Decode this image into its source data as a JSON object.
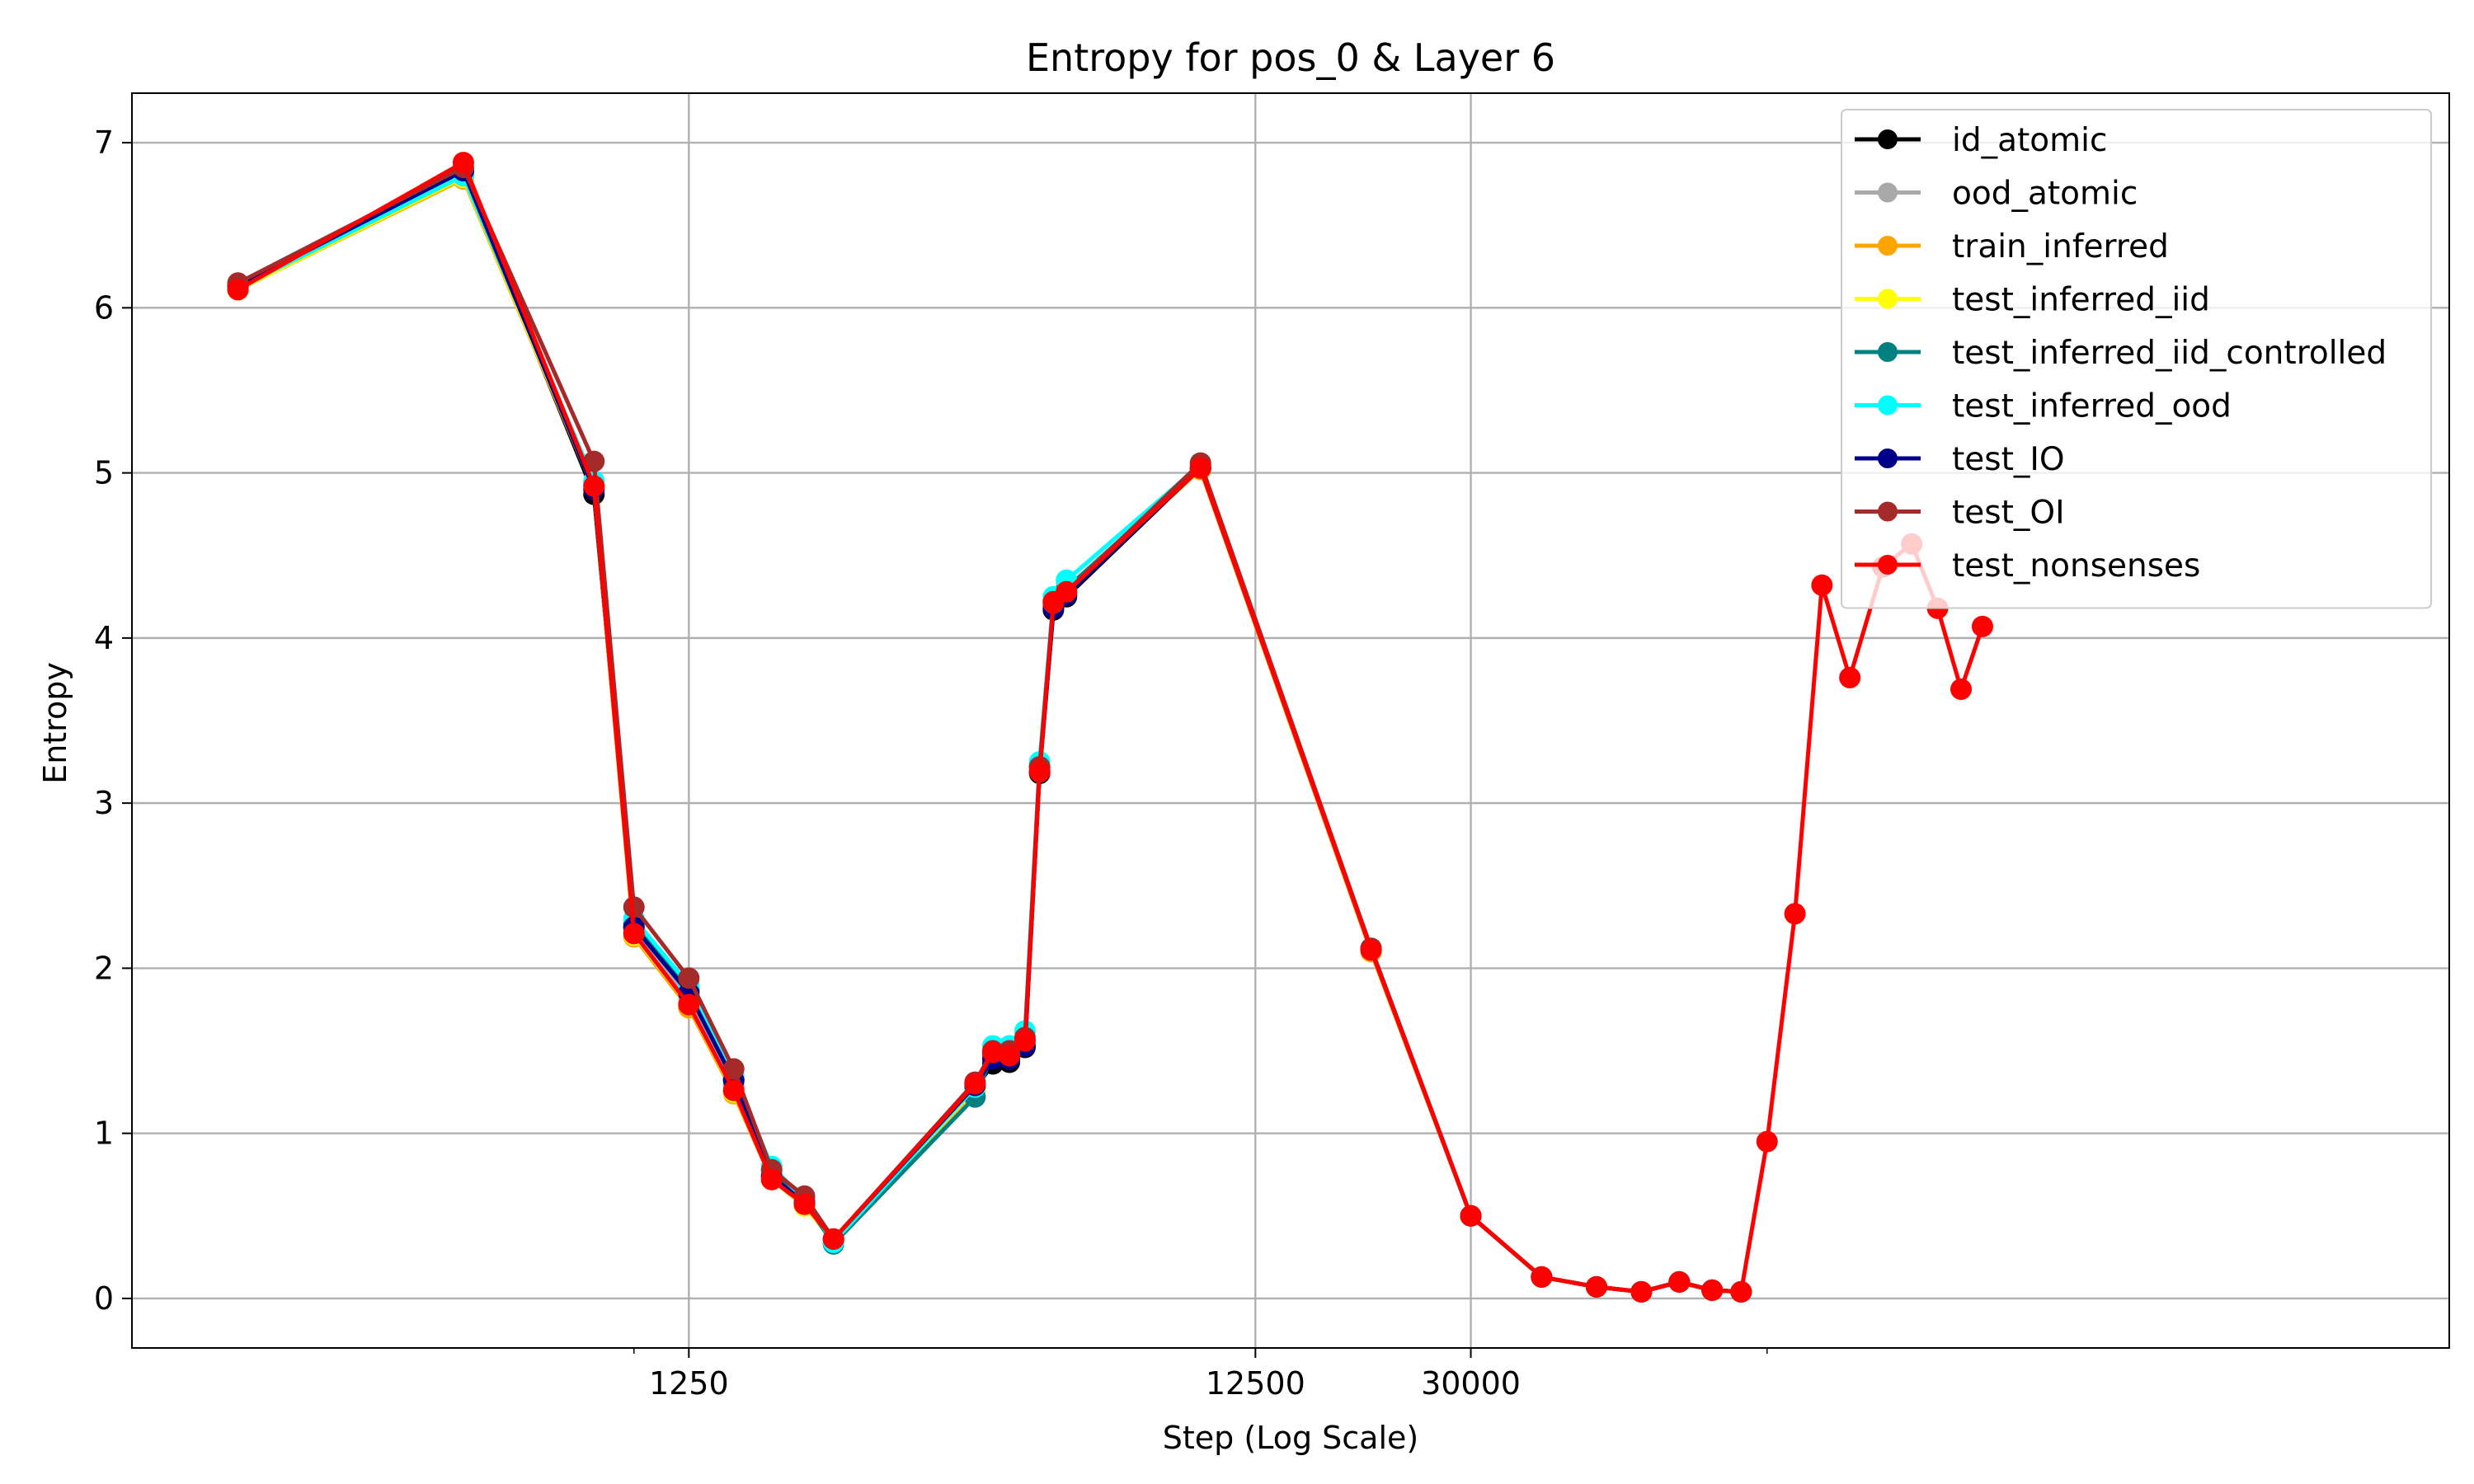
{
  "chart_data": {
    "type": "line",
    "title": "Entropy for pos_0 & Layer 6",
    "xlabel": "Step (Log Scale)",
    "ylabel": "Entropy",
    "xscale": "log",
    "grid": true,
    "legend_position": "top-right",
    "ylim": [
      -0.3,
      7.3
    ],
    "xlim": [
      130,
      1600000
    ],
    "x_ticks": [
      1250,
      12500,
      30000
    ],
    "x_tick_labels": [
      "1250",
      "12500",
      "30000"
    ],
    "y_ticks": [
      0,
      1,
      2,
      3,
      4,
      5,
      6,
      7
    ],
    "y_tick_labels": [
      "0",
      "1",
      "2",
      "3",
      "4",
      "5",
      "6",
      "7"
    ],
    "series": [
      {
        "name": "id_atomic",
        "color": "#000000",
        "points": [
          [
            200,
            6.13
          ],
          [
            500,
            6.82
          ],
          [
            850,
            4.87
          ],
          [
            1000,
            2.25
          ],
          [
            1250,
            1.86
          ],
          [
            1500,
            1.33
          ],
          [
            1750,
            0.74
          ],
          [
            2000,
            0.58
          ],
          [
            2250,
            0.35
          ],
          [
            4000,
            1.27
          ],
          [
            4300,
            1.42
          ],
          [
            4600,
            1.43
          ],
          [
            4900,
            1.52
          ],
          [
            5200,
            3.18
          ],
          [
            5500,
            4.17
          ],
          [
            5800,
            4.25
          ],
          [
            10000,
            5.03
          ],
          [
            20000,
            2.12
          ],
          [
            30000,
            0.5
          ],
          [
            40000,
            0.13
          ],
          [
            50000,
            0.07
          ],
          [
            60000,
            0.04
          ],
          [
            70000,
            0.1
          ],
          [
            80000,
            0.05
          ],
          [
            90000,
            0.04
          ]
        ]
      },
      {
        "name": "ood_atomic",
        "color": "#a9a9a9",
        "points": [
          [
            200,
            6.12
          ],
          [
            500,
            6.8
          ],
          [
            850,
            4.95
          ],
          [
            1000,
            2.22
          ],
          [
            1250,
            1.82
          ],
          [
            1500,
            1.29
          ],
          [
            1750,
            0.76
          ],
          [
            2000,
            0.57
          ],
          [
            2250,
            0.34
          ],
          [
            4000,
            1.27
          ],
          [
            4300,
            1.47
          ],
          [
            4600,
            1.47
          ],
          [
            4900,
            1.55
          ],
          [
            5200,
            3.22
          ],
          [
            5500,
            4.22
          ],
          [
            5800,
            4.3
          ],
          [
            10000,
            5.04
          ],
          [
            20000,
            2.12
          ],
          [
            30000,
            0.5
          ],
          [
            40000,
            0.13
          ],
          [
            50000,
            0.07
          ],
          [
            60000,
            0.04
          ],
          [
            70000,
            0.1
          ],
          [
            80000,
            0.05
          ],
          [
            90000,
            0.04
          ]
        ]
      },
      {
        "name": "train_inferred",
        "color": "#ffa500",
        "points": [
          [
            200,
            6.11
          ],
          [
            500,
            6.78
          ],
          [
            850,
            4.9
          ],
          [
            1000,
            2.19
          ],
          [
            1250,
            1.76
          ],
          [
            1500,
            1.24
          ],
          [
            1750,
            0.72
          ],
          [
            2000,
            0.56
          ],
          [
            2250,
            0.35
          ],
          [
            4000,
            1.26
          ],
          [
            4300,
            1.47
          ],
          [
            4600,
            1.47
          ],
          [
            4900,
            1.54
          ],
          [
            5200,
            3.19
          ],
          [
            5500,
            4.2
          ],
          [
            5800,
            4.28
          ],
          [
            10000,
            5.02
          ],
          [
            20000,
            2.1
          ],
          [
            30000,
            0.5
          ],
          [
            40000,
            0.13
          ],
          [
            50000,
            0.07
          ],
          [
            60000,
            0.04
          ],
          [
            70000,
            0.1
          ],
          [
            80000,
            0.05
          ],
          [
            90000,
            0.04
          ]
        ]
      },
      {
        "name": "test_inferred_iid",
        "color": "#ffff00",
        "points": [
          [
            200,
            6.11
          ],
          [
            500,
            6.79
          ],
          [
            850,
            4.91
          ],
          [
            1000,
            2.2
          ],
          [
            1250,
            1.78
          ],
          [
            1500,
            1.25
          ],
          [
            1750,
            0.73
          ],
          [
            2000,
            0.56
          ],
          [
            2250,
            0.35
          ],
          [
            4000,
            1.27
          ],
          [
            4300,
            1.48
          ],
          [
            4600,
            1.48
          ],
          [
            4900,
            1.55
          ],
          [
            5200,
            3.2
          ],
          [
            5500,
            4.21
          ],
          [
            5800,
            4.29
          ],
          [
            10000,
            5.03
          ],
          [
            20000,
            2.11
          ],
          [
            30000,
            0.5
          ],
          [
            40000,
            0.13
          ],
          [
            50000,
            0.07
          ],
          [
            60000,
            0.04
          ],
          [
            70000,
            0.1
          ],
          [
            80000,
            0.05
          ],
          [
            90000,
            0.04
          ]
        ]
      },
      {
        "name": "test_inferred_iid_controlled",
        "color": "#008080",
        "points": [
          [
            200,
            6.12
          ],
          [
            500,
            6.8
          ],
          [
            850,
            4.93
          ],
          [
            1000,
            2.27
          ],
          [
            1250,
            1.87
          ],
          [
            1500,
            1.32
          ],
          [
            1750,
            0.78
          ],
          [
            2000,
            0.59
          ],
          [
            2250,
            0.33
          ],
          [
            4000,
            1.22
          ],
          [
            4300,
            1.48
          ],
          [
            4600,
            1.48
          ],
          [
            4900,
            1.56
          ],
          [
            5200,
            3.22
          ],
          [
            5500,
            4.22
          ],
          [
            5800,
            4.3
          ],
          [
            10000,
            5.03
          ],
          [
            20000,
            2.12
          ],
          [
            30000,
            0.5
          ],
          [
            40000,
            0.13
          ],
          [
            50000,
            0.07
          ],
          [
            60000,
            0.04
          ],
          [
            70000,
            0.1
          ],
          [
            80000,
            0.05
          ],
          [
            90000,
            0.04
          ]
        ]
      },
      {
        "name": "test_inferred_ood",
        "color": "#00ffff",
        "points": [
          [
            200,
            6.12
          ],
          [
            500,
            6.8
          ],
          [
            850,
            4.95
          ],
          [
            1000,
            2.3
          ],
          [
            1250,
            1.9
          ],
          [
            1500,
            1.35
          ],
          [
            1750,
            0.8
          ],
          [
            2000,
            0.6
          ],
          [
            2250,
            0.34
          ],
          [
            4000,
            1.28
          ],
          [
            4300,
            1.53
          ],
          [
            4600,
            1.53
          ],
          [
            4900,
            1.62
          ],
          [
            5200,
            3.25
          ],
          [
            5500,
            4.25
          ],
          [
            5800,
            4.35
          ],
          [
            10000,
            5.05
          ],
          [
            20000,
            2.12
          ],
          [
            30000,
            0.5
          ],
          [
            40000,
            0.13
          ],
          [
            50000,
            0.07
          ],
          [
            60000,
            0.04
          ],
          [
            70000,
            0.1
          ],
          [
            80000,
            0.05
          ],
          [
            90000,
            0.04
          ]
        ]
      },
      {
        "name": "test_IO",
        "color": "#00008b",
        "points": [
          [
            200,
            6.13
          ],
          [
            500,
            6.83
          ],
          [
            850,
            4.9
          ],
          [
            1000,
            2.25
          ],
          [
            1250,
            1.85
          ],
          [
            1500,
            1.32
          ],
          [
            1750,
            0.74
          ],
          [
            2000,
            0.58
          ],
          [
            2250,
            0.36
          ],
          [
            4000,
            1.29
          ],
          [
            4300,
            1.45
          ],
          [
            4600,
            1.45
          ],
          [
            4900,
            1.53
          ],
          [
            5200,
            3.19
          ],
          [
            5500,
            4.18
          ],
          [
            5800,
            4.26
          ],
          [
            10000,
            5.03
          ],
          [
            20000,
            2.12
          ],
          [
            30000,
            0.5
          ],
          [
            40000,
            0.13
          ],
          [
            50000,
            0.07
          ],
          [
            60000,
            0.04
          ],
          [
            70000,
            0.1
          ],
          [
            80000,
            0.05
          ],
          [
            90000,
            0.04
          ]
        ]
      },
      {
        "name": "test_OI",
        "color": "#a52a2a",
        "points": [
          [
            200,
            6.15
          ],
          [
            500,
            6.85
          ],
          [
            850,
            5.07
          ],
          [
            1000,
            2.37
          ],
          [
            1250,
            1.94
          ],
          [
            1500,
            1.39
          ],
          [
            1750,
            0.78
          ],
          [
            2000,
            0.62
          ],
          [
            2250,
            0.36
          ],
          [
            4000,
            1.31
          ],
          [
            4300,
            1.5
          ],
          [
            4600,
            1.5
          ],
          [
            4900,
            1.58
          ],
          [
            5200,
            3.22
          ],
          [
            5500,
            4.21
          ],
          [
            5800,
            4.28
          ],
          [
            10000,
            5.06
          ],
          [
            20000,
            2.12
          ],
          [
            30000,
            0.5
          ],
          [
            40000,
            0.13
          ],
          [
            50000,
            0.07
          ],
          [
            60000,
            0.04
          ],
          [
            70000,
            0.1
          ],
          [
            80000,
            0.05
          ],
          [
            90000,
            0.04
          ]
        ]
      },
      {
        "name": "test_nonsenses",
        "color": "#ff0000",
        "points": [
          [
            200,
            6.11
          ],
          [
            500,
            6.88
          ],
          [
            850,
            4.92
          ],
          [
            1000,
            2.21
          ],
          [
            1250,
            1.78
          ],
          [
            1500,
            1.26
          ],
          [
            1750,
            0.72
          ],
          [
            2000,
            0.57
          ],
          [
            2250,
            0.36
          ],
          [
            4000,
            1.3
          ],
          [
            4300,
            1.49
          ],
          [
            4600,
            1.47
          ],
          [
            4900,
            1.56
          ],
          [
            5200,
            3.19
          ],
          [
            5500,
            4.22
          ],
          [
            5800,
            4.28
          ],
          [
            10000,
            5.03
          ],
          [
            20000,
            2.11
          ],
          [
            30000,
            0.5
          ],
          [
            40000,
            0.13
          ],
          [
            50000,
            0.07
          ],
          [
            60000,
            0.04
          ],
          [
            70000,
            0.1
          ],
          [
            80000,
            0.05
          ],
          [
            90000,
            0.04
          ],
          [
            100000,
            0.95
          ],
          [
            112000,
            2.33
          ],
          [
            125000,
            4.32
          ],
          [
            140000,
            3.76
          ],
          [
            160000,
            4.43
          ],
          [
            180000,
            4.57
          ],
          [
            200000,
            4.18
          ],
          [
            220000,
            3.69
          ],
          [
            240000,
            4.07
          ]
        ]
      }
    ]
  }
}
